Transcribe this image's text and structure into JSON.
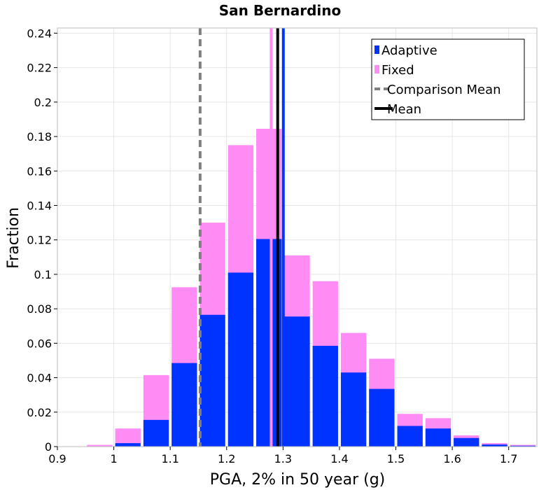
{
  "chart_data": {
    "type": "bar",
    "title": "San Bernardino",
    "xlabel": "PGA, 2% in 50 year (g)",
    "ylabel": "Fraction",
    "xlim": [
      0.9,
      1.75
    ],
    "ylim": [
      0,
      0.243
    ],
    "xticks": [
      0.9,
      1.0,
      1.1,
      1.2,
      1.3,
      1.4,
      1.5,
      1.6,
      1.7
    ],
    "xtick_labels": [
      "0.9",
      "1",
      "1.1",
      "1.2",
      "1.3",
      "1.4",
      "1.5",
      "1.6",
      "1.7"
    ],
    "yticks": [
      0,
      0.02,
      0.04,
      0.06,
      0.08,
      0.1,
      0.12,
      0.14,
      0.16,
      0.18,
      0.2,
      0.22,
      0.24
    ],
    "ytick_labels": [
      "0",
      "0.02",
      "0.04",
      "0.06",
      "0.08",
      "0.1",
      "0.12",
      "0.14",
      "0.16",
      "0.18",
      "0.2",
      "0.22",
      "0.24"
    ],
    "grid": true,
    "bin_width": 0.05,
    "bin_centers": [
      0.925,
      0.975,
      1.025,
      1.075,
      1.125,
      1.175,
      1.225,
      1.275,
      1.325,
      1.375,
      1.425,
      1.475,
      1.525,
      1.575,
      1.625,
      1.675,
      1.725
    ],
    "series": [
      {
        "name": "Fixed",
        "color": "#ff8cf5",
        "values": [
          0,
          0.001,
          0.0105,
          0.0415,
          0.0925,
          0.13,
          0.175,
          0.1845,
          0.111,
          0.096,
          0.066,
          0.051,
          0.019,
          0.0165,
          0.0065,
          0.002,
          0.001
        ]
      },
      {
        "name": "Adaptive",
        "color": "#0033ff",
        "values": [
          0,
          0.0002,
          0.002,
          0.0155,
          0.0485,
          0.0765,
          0.101,
          0.1205,
          0.0755,
          0.0585,
          0.043,
          0.0335,
          0.012,
          0.0105,
          0.005,
          0.0012,
          0.0005
        ]
      }
    ],
    "vertical_lines": [
      {
        "name": "Comparison Mean",
        "x": 1.153,
        "color": "#808080",
        "style": "dashed"
      },
      {
        "name": "Fixed mean",
        "x": 1.279,
        "color": "#ff8cf5",
        "style": "solid"
      },
      {
        "name": "Mean",
        "x": 1.2905,
        "color": "#000000",
        "style": "solid"
      },
      {
        "name": "Adaptive mean",
        "x": 1.3005,
        "color": "#0033ff",
        "style": "solid"
      }
    ],
    "legend": {
      "position": "top-right",
      "entries": [
        {
          "label": "Adaptive",
          "color": "#0033ff",
          "kind": "patch"
        },
        {
          "label": "Fixed",
          "color": "#ff8cf5",
          "kind": "patch"
        },
        {
          "label": "Comparison Mean",
          "color": "#808080",
          "kind": "dashed-line"
        },
        {
          "label": "Mean",
          "color": "#000000",
          "kind": "line"
        }
      ]
    }
  }
}
